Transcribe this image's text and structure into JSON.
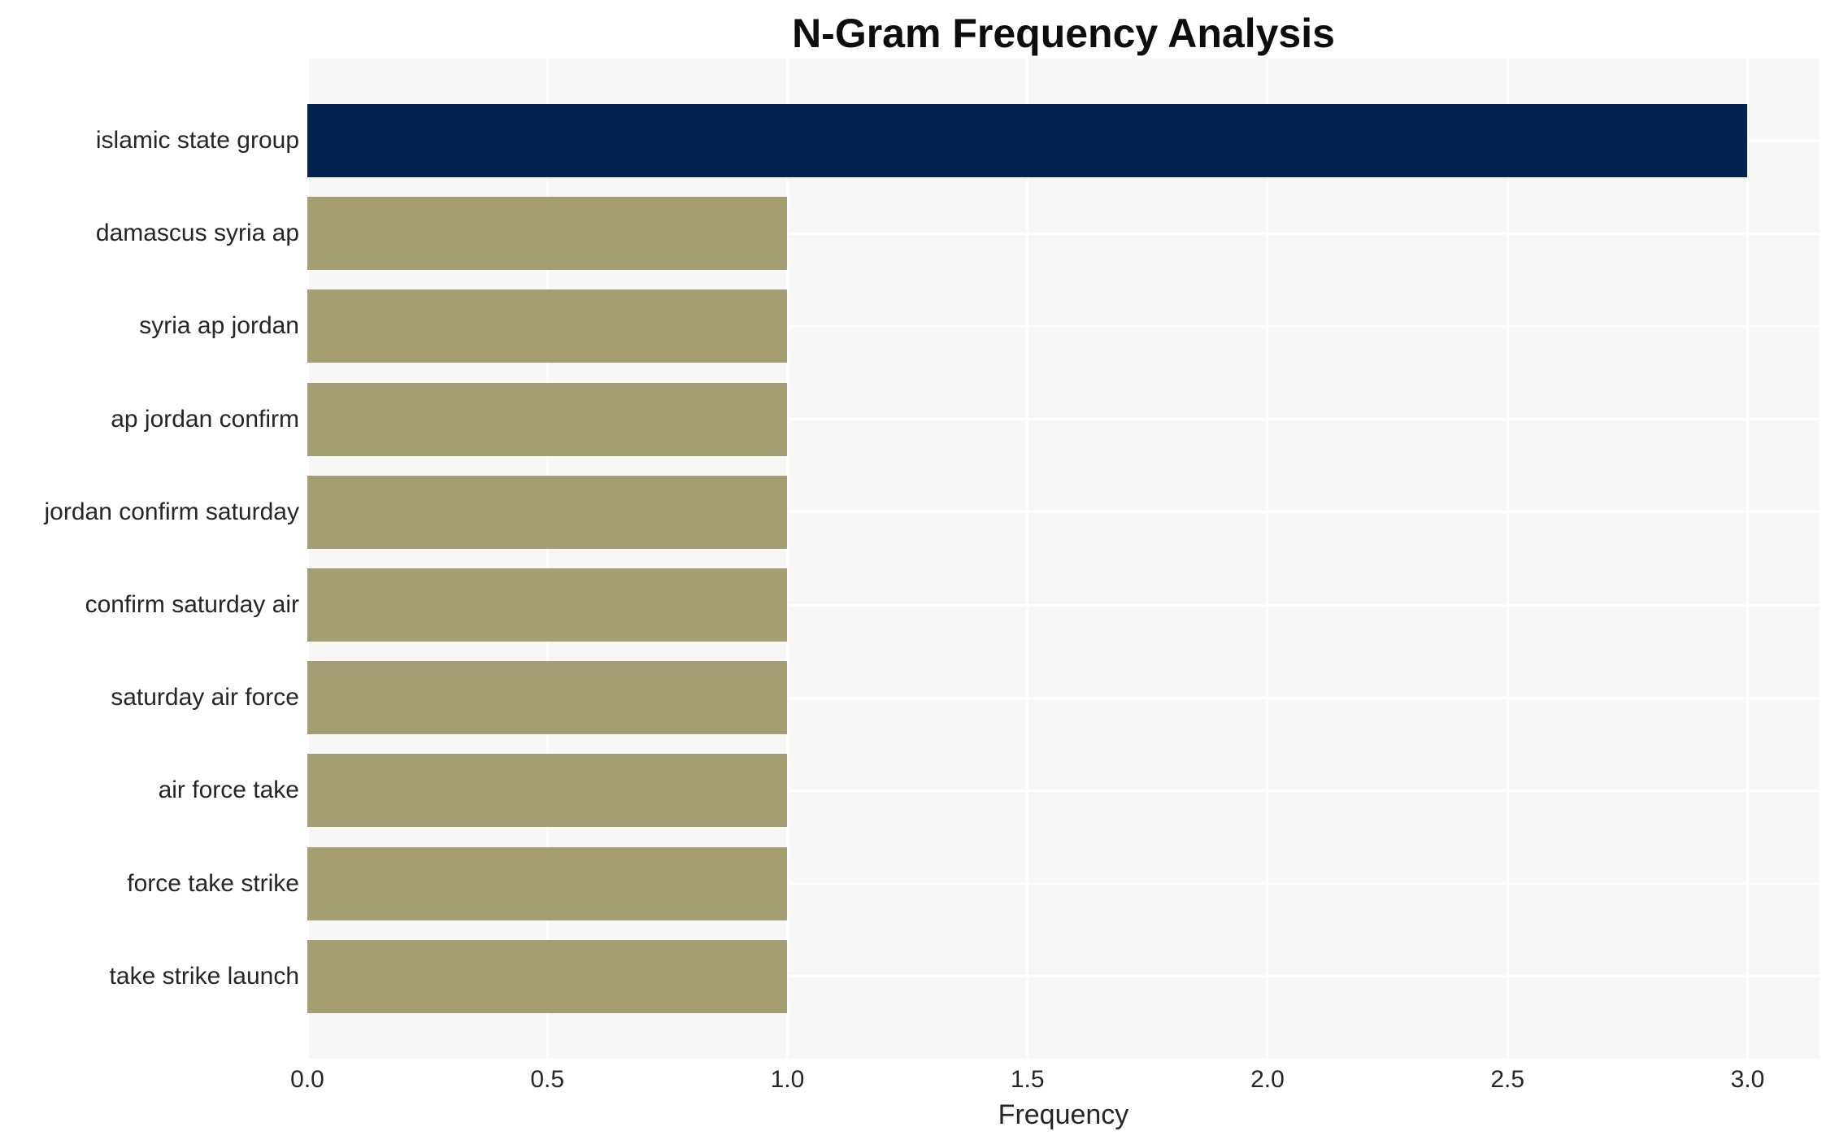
{
  "chart_data": {
    "type": "bar",
    "orientation": "horizontal",
    "title": "N-Gram Frequency Analysis",
    "xlabel": "Frequency",
    "ylabel": "",
    "categories": [
      "islamic state group",
      "damascus syria ap",
      "syria ap jordan",
      "ap jordan confirm",
      "jordan confirm saturday",
      "confirm saturday air",
      "saturday air force",
      "air force take",
      "force take strike",
      "take strike launch"
    ],
    "values": [
      3,
      1,
      1,
      1,
      1,
      1,
      1,
      1,
      1,
      1
    ],
    "bar_colors": [
      "#02244e",
      "#a59e72",
      "#a59e72",
      "#a59e72",
      "#a59e72",
      "#a59e72",
      "#a59e72",
      "#a59e72",
      "#a59e72",
      "#a59e72"
    ],
    "xlim": [
      0,
      3.15
    ],
    "xticks": [
      0.0,
      0.5,
      1.0,
      1.5,
      2.0,
      2.5,
      3.0
    ],
    "xtick_labels": [
      "0.0",
      "0.5",
      "1.0",
      "1.5",
      "2.0",
      "2.5",
      "3.0"
    ],
    "grid": true,
    "legend": false,
    "colors": {
      "highlight_bar": "#02244e",
      "default_bar": "#a59e72",
      "plot_background": "#f7f7f6",
      "gridline": "#ffffff",
      "tick_text": "#262626",
      "title_text": "#0d0d0d",
      "page_background": "#ffffff"
    }
  }
}
